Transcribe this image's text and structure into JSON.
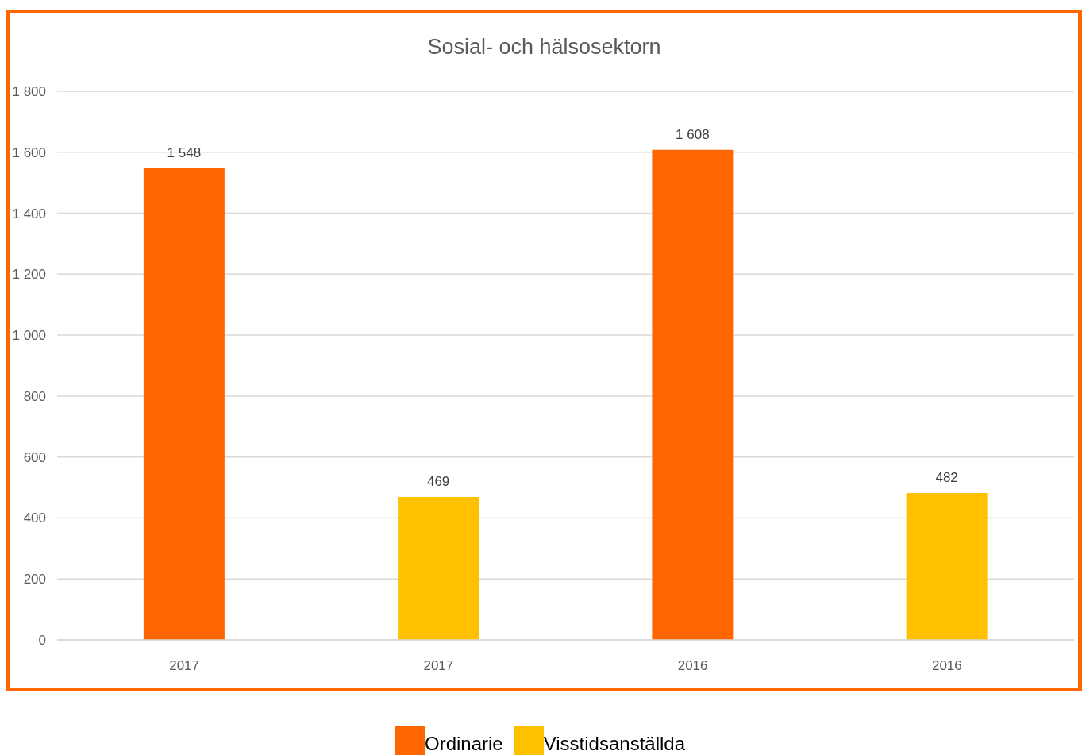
{
  "chart_data": {
    "type": "bar",
    "title": "Sosial- och hälsosektorn",
    "categories": [
      "2017",
      "2017",
      "2016",
      "2016"
    ],
    "series": [
      {
        "name": "Ordinarie",
        "color": "#ff6600",
        "values": [
          1548,
          null,
          1608,
          null
        ],
        "value_labels": [
          "1 548",
          null,
          "1 608",
          null
        ]
      },
      {
        "name": "Visstidsanställda",
        "color": "#ffc000",
        "values": [
          null,
          469,
          null,
          482
        ],
        "value_labels": [
          null,
          "469",
          null,
          "482"
        ]
      }
    ],
    "stacked": true,
    "ylim": [
      0,
      1800
    ],
    "yticks": [
      0,
      200,
      400,
      600,
      800,
      {
        "value": 1000,
        "label": "1 000"
      },
      {
        "value": 1200,
        "label": "1 200"
      },
      {
        "value": 1400,
        "label": "1 400"
      },
      {
        "value": 1600,
        "label": "1 600"
      },
      {
        "value": 1800,
        "label": "1 800"
      }
    ],
    "grid": "y",
    "legend": "bottom"
  }
}
